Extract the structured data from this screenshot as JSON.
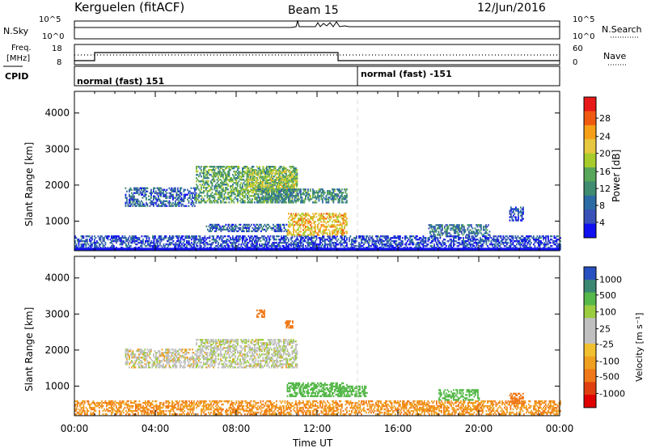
{
  "header": {
    "station": "Kerguelen (fitACF)",
    "beam": "Beam 15",
    "date": "12/Jun/2016"
  },
  "panels": {
    "nsky": {
      "label": "N.Sky",
      "ticks": [
        "10^5",
        "10^0"
      ],
      "right_label": "N.Search",
      "right_ticks": [
        "10^5",
        "10^0"
      ]
    },
    "freq": {
      "label_top": "Freq.",
      "label_unit": "[MHz]",
      "ticks": [
        "18",
        "8"
      ],
      "right_label": "Nave",
      "right_ticks": [
        "60",
        "0"
      ]
    },
    "cpid": {
      "label": "CPID",
      "modes": [
        "normal (fast) 151",
        "normal (fast) -151"
      ]
    }
  },
  "colorbars": {
    "power": {
      "label": "Power [dB]",
      "ticks": [
        "28",
        "24",
        "20",
        "16",
        "12",
        "8",
        "4"
      ],
      "colors": [
        "#e81818",
        "#f05a10",
        "#f5a018",
        "#e6c840",
        "#a8cc2c",
        "#58a65a",
        "#3f8c70",
        "#2c6ca4",
        "#3a52b8",
        "#1010f0"
      ]
    },
    "velocity": {
      "label": "Velocity [m s⁻¹]",
      "ticks": [
        "1000",
        "500",
        "100",
        "25",
        "-25",
        "-100",
        "-500",
        "-1000"
      ],
      "colors": [
        "#2850c0",
        "#3a8872",
        "#56b84a",
        "#9ccc40",
        "#c0c0c0",
        "#c0c0c0",
        "#f0c030",
        "#f0a020",
        "#f07818",
        "#e04010",
        "#e00000"
      ]
    }
  },
  "chart_data": [
    {
      "type": "heatmap",
      "title": "Power",
      "xlabel": "",
      "ylabel": "Slant Range [km]",
      "yticks": [
        "1000",
        "2000",
        "3000",
        "4000"
      ],
      "ylim": [
        180,
        4600
      ],
      "xlim": [
        0,
        24
      ],
      "regions": [
        {
          "t0": 0.0,
          "t1": 24.0,
          "r0": 200,
          "r1": 600,
          "value": 6
        },
        {
          "t0": 2.5,
          "t1": 6.0,
          "r0": 1400,
          "r1": 1900,
          "value": 8
        },
        {
          "t0": 6.0,
          "t1": 11.0,
          "r0": 1500,
          "r1": 2500,
          "value": 14
        },
        {
          "t0": 8.5,
          "t1": 11.0,
          "r0": 1800,
          "r1": 2400,
          "value": 18
        },
        {
          "t0": 10.5,
          "t1": 13.5,
          "r0": 600,
          "r1": 1200,
          "value": 22
        },
        {
          "t0": 9.0,
          "t1": 13.5,
          "r0": 1500,
          "r1": 1900,
          "value": 12
        },
        {
          "t0": 6.5,
          "t1": 10.5,
          "r0": 700,
          "r1": 900,
          "value": 8
        },
        {
          "t0": 17.5,
          "t1": 20.5,
          "r0": 600,
          "r1": 900,
          "value": 10
        },
        {
          "t0": 21.5,
          "t1": 22.2,
          "r0": 1000,
          "r1": 1400,
          "value": 6
        }
      ]
    },
    {
      "type": "heatmap",
      "title": "Velocity",
      "xlabel": "Time UT",
      "ylabel": "Slant Range [km]",
      "xticks": [
        "00:00",
        "04:00",
        "08:00",
        "12:00",
        "16:00",
        "20:00",
        "00:00"
      ],
      "yticks": [
        "1000",
        "2000",
        "3000",
        "4000"
      ],
      "ylim": [
        180,
        4600
      ],
      "xlim": [
        0,
        24
      ],
      "regions": [
        {
          "t0": 0.0,
          "t1": 24.0,
          "r0": 200,
          "r1": 600,
          "value": -90
        },
        {
          "t0": 2.5,
          "t1": 6.0,
          "r0": 1500,
          "r1": 2000,
          "value": 0
        },
        {
          "t0": 6.0,
          "t1": 11.0,
          "r0": 1500,
          "r1": 2300,
          "value": 10
        },
        {
          "t0": 10.5,
          "t1": 13.5,
          "r0": 700,
          "r1": 1100,
          "value": 150
        },
        {
          "t0": 13.0,
          "t1": 14.5,
          "r0": 700,
          "r1": 1000,
          "value": 150
        },
        {
          "t0": 9.0,
          "t1": 9.4,
          "r0": 2900,
          "r1": 3100,
          "value": -400
        },
        {
          "t0": 10.4,
          "t1": 10.8,
          "r0": 2600,
          "r1": 2800,
          "value": -300
        },
        {
          "t0": 18.0,
          "t1": 20.0,
          "r0": 600,
          "r1": 900,
          "value": 300
        },
        {
          "t0": 21.5,
          "t1": 22.2,
          "r0": 500,
          "r1": 800,
          "value": -200
        }
      ]
    }
  ]
}
